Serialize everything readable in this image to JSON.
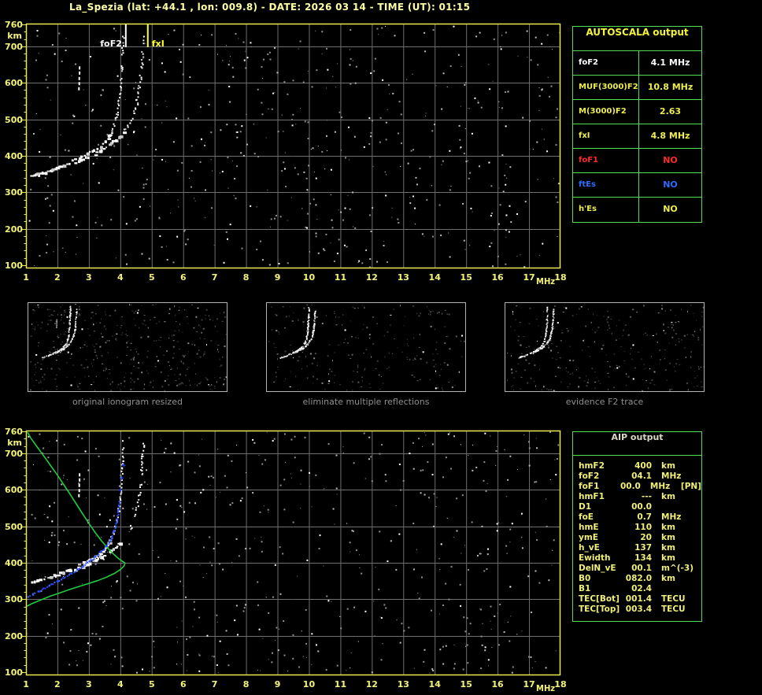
{
  "title": "La_Spezia (lat: +44.1 , lon: 009.8) - DATE: 2026 03 14 - TIME (UT): 01:15",
  "autoscala": {
    "header": "AUTOSCALA output",
    "rows": [
      {
        "label": "foF2",
        "value": "4.1 MHz",
        "color": "#ffffff"
      },
      {
        "label": "MUF(3000)F2",
        "value": "10.8 MHz",
        "color": "#eded4e"
      },
      {
        "label": "M(3000)F2",
        "value": "2.63",
        "color": "#eded4e"
      },
      {
        "label": "fxI",
        "value": "4.8 MHz",
        "color": "#eded4e"
      },
      {
        "label": "foF1",
        "value": "NO",
        "color": "#ff2a2a"
      },
      {
        "label": "ftEs",
        "value": "NO",
        "color": "#2b6bff"
      },
      {
        "label": "h'Es",
        "value": "NO",
        "color": "#eded4e"
      }
    ]
  },
  "panels": [
    {
      "caption": "original ionogram resized"
    },
    {
      "caption": "eliminate multiple reflections"
    },
    {
      "caption": "evidence F2 trace"
    }
  ],
  "aip": {
    "header": "AIP output",
    "rows": [
      {
        "label": "hmF2",
        "value": "400",
        "unit": "km",
        "extra": ""
      },
      {
        "label": "foF2",
        "value": "04.1",
        "unit": "MHz",
        "extra": ""
      },
      {
        "label": "foF1",
        "value": "00.0",
        "unit": "MHz",
        "extra": "[PN]"
      },
      {
        "label": "hmF1",
        "value": "---",
        "unit": "km",
        "extra": ""
      },
      {
        "label": "D1",
        "value": "00.0",
        "unit": "",
        "extra": ""
      },
      {
        "label": "foE",
        "value": "0.7",
        "unit": "MHz",
        "extra": ""
      },
      {
        "label": "hmE",
        "value": "110",
        "unit": "km",
        "extra": ""
      },
      {
        "label": "ymE",
        "value": "20",
        "unit": "km",
        "extra": ""
      },
      {
        "label": "h_vE",
        "value": "137",
        "unit": "km",
        "extra": ""
      },
      {
        "label": "Ewidth",
        "value": "134",
        "unit": "km",
        "extra": ""
      },
      {
        "label": "DelN_vE",
        "value": "00.1",
        "unit": "m^(-3)",
        "extra": ""
      },
      {
        "label": "B0",
        "value": "082.0",
        "unit": "km",
        "extra": ""
      },
      {
        "label": "B1",
        "value": "02.4",
        "unit": "",
        "extra": ""
      },
      {
        "label": "TEC[Bot]",
        "value": "001.4",
        "unit": "TECU",
        "extra": ""
      },
      {
        "label": "TEC[Top]",
        "value": "003.4",
        "unit": "TECU",
        "extra": ""
      }
    ]
  },
  "chart_data": {
    "type": "scatter",
    "axes": {
      "xlabel": "MHz",
      "ylabel": "km",
      "xlim": [
        1,
        18
      ],
      "ylim": [
        100,
        760
      ],
      "x_ticks": [
        1,
        2,
        3,
        4,
        5,
        6,
        7,
        8,
        9,
        10,
        11,
        12,
        13,
        14,
        15,
        16,
        17,
        18
      ],
      "y_ticks": [
        760,
        700,
        600,
        500,
        400,
        300,
        200,
        100
      ],
      "grid": true
    },
    "colors": {
      "frame": "#e8e850",
      "grid": "#6f6f6f",
      "axis_text": "#efef7a",
      "trace": "#ffffff",
      "blue": "#2946ff",
      "green": "#1fcc3e",
      "marker_fof2": "#ffffff",
      "marker_fxi": "#ffff33",
      "mini_border": "#b4b4b4"
    },
    "traces": {
      "o_trace": [
        [
          1.15,
          347
        ],
        [
          1.35,
          352
        ],
        [
          1.55,
          357
        ],
        [
          1.75,
          362
        ],
        [
          1.95,
          368
        ],
        [
          2.15,
          375
        ],
        [
          2.35,
          382
        ],
        [
          2.55,
          390
        ],
        [
          2.75,
          398
        ],
        [
          2.95,
          407
        ],
        [
          3.15,
          417
        ],
        [
          3.35,
          429
        ],
        [
          3.5,
          442
        ],
        [
          3.62,
          456
        ],
        [
          3.72,
          472
        ],
        [
          3.8,
          492
        ],
        [
          3.87,
          516
        ],
        [
          3.92,
          543
        ],
        [
          3.96,
          574
        ],
        [
          3.99,
          608
        ],
        [
          4.02,
          645
        ],
        [
          4.04,
          682
        ],
        [
          4.06,
          716
        ],
        [
          4.07,
          745
        ]
      ],
      "x_trace": [
        [
          2.55,
          385
        ],
        [
          2.75,
          392
        ],
        [
          2.95,
          399
        ],
        [
          3.15,
          407
        ],
        [
          3.35,
          416
        ],
        [
          3.55,
          427
        ],
        [
          3.75,
          440
        ],
        [
          3.95,
          455
        ],
        [
          4.12,
          472
        ],
        [
          4.28,
          492
        ],
        [
          4.4,
          516
        ],
        [
          4.5,
          545
        ],
        [
          4.57,
          578
        ],
        [
          4.62,
          615
        ],
        [
          4.66,
          655
        ],
        [
          4.69,
          695
        ],
        [
          4.71,
          730
        ]
      ],
      "second_hop_echo": [
        [
          2.66,
          588
        ],
        [
          2.67,
          602
        ],
        [
          2.67,
          616
        ],
        [
          2.68,
          631
        ],
        [
          2.68,
          645
        ]
      ],
      "restored_trace_blue": [
        [
          1.05,
          308
        ],
        [
          1.2,
          315
        ],
        [
          1.4,
          324
        ],
        [
          1.6,
          333
        ],
        [
          1.8,
          342
        ],
        [
          2.0,
          351
        ],
        [
          2.2,
          361
        ],
        [
          2.4,
          371
        ],
        [
          2.6,
          382
        ],
        [
          2.8,
          393
        ],
        [
          3.0,
          405
        ],
        [
          3.2,
          418
        ],
        [
          3.38,
          433
        ],
        [
          3.55,
          449
        ],
        [
          3.68,
          466
        ],
        [
          3.78,
          487
        ],
        [
          3.86,
          512
        ],
        [
          3.92,
          540
        ],
        [
          3.96,
          570
        ]
      ],
      "blue_isolated": [
        [
          4.0,
          600
        ],
        [
          4.03,
          633
        ],
        [
          4.1,
          668
        ]
      ],
      "density_profile_green": [
        [
          1.05,
          758
        ],
        [
          1.15,
          742
        ],
        [
          1.3,
          724
        ],
        [
          1.45,
          706
        ],
        [
          1.62,
          686
        ],
        [
          1.8,
          664
        ],
        [
          2.0,
          640
        ],
        [
          2.2,
          614
        ],
        [
          2.4,
          588
        ],
        [
          2.6,
          561
        ],
        [
          2.8,
          534
        ],
        [
          3.0,
          508
        ],
        [
          3.2,
          483
        ],
        [
          3.4,
          460
        ],
        [
          3.6,
          440
        ],
        [
          3.78,
          424
        ],
        [
          3.95,
          411
        ],
        [
          4.08,
          403
        ],
        [
          4.15,
          399
        ],
        [
          4.12,
          391
        ],
        [
          4.0,
          381
        ],
        [
          3.8,
          370
        ],
        [
          3.55,
          360
        ],
        [
          3.28,
          351
        ],
        [
          3.0,
          343
        ],
        [
          2.7,
          335
        ],
        [
          2.4,
          327
        ],
        [
          2.1,
          318
        ],
        [
          1.8,
          309
        ],
        [
          1.5,
          299
        ],
        [
          1.2,
          288
        ],
        [
          0.98,
          279
        ]
      ]
    },
    "top_plot": {
      "markers": [
        {
          "label": "foF2",
          "mhz": 4.1,
          "color": "#ffffff",
          "side": "left"
        },
        {
          "label": "fxI",
          "mhz": 4.8,
          "color": "#ffff33",
          "side": "right"
        }
      ],
      "noise_seed": 1001,
      "noise_count": 560,
      "series": [
        "o_trace",
        "x_trace",
        "second_hop_echo"
      ]
    },
    "bottom_plot": {
      "markers": [],
      "noise_seed": 2002,
      "noise_count": 560,
      "series": [
        "o_trace",
        "x_trace",
        "second_hop_echo",
        "density_profile_green",
        "restored_trace_blue"
      ]
    },
    "mini_panels": [
      {
        "noise_seed": 11,
        "noise_count": 430,
        "series": [
          "o_trace",
          "x_trace",
          "second_hop_echo"
        ]
      },
      {
        "noise_seed": 22,
        "noise_count": 230,
        "series": [
          "o_trace",
          "x_trace"
        ]
      },
      {
        "noise_seed": 33,
        "noise_count": 280,
        "series": [
          "o_trace",
          "x_trace"
        ]
      }
    ]
  }
}
